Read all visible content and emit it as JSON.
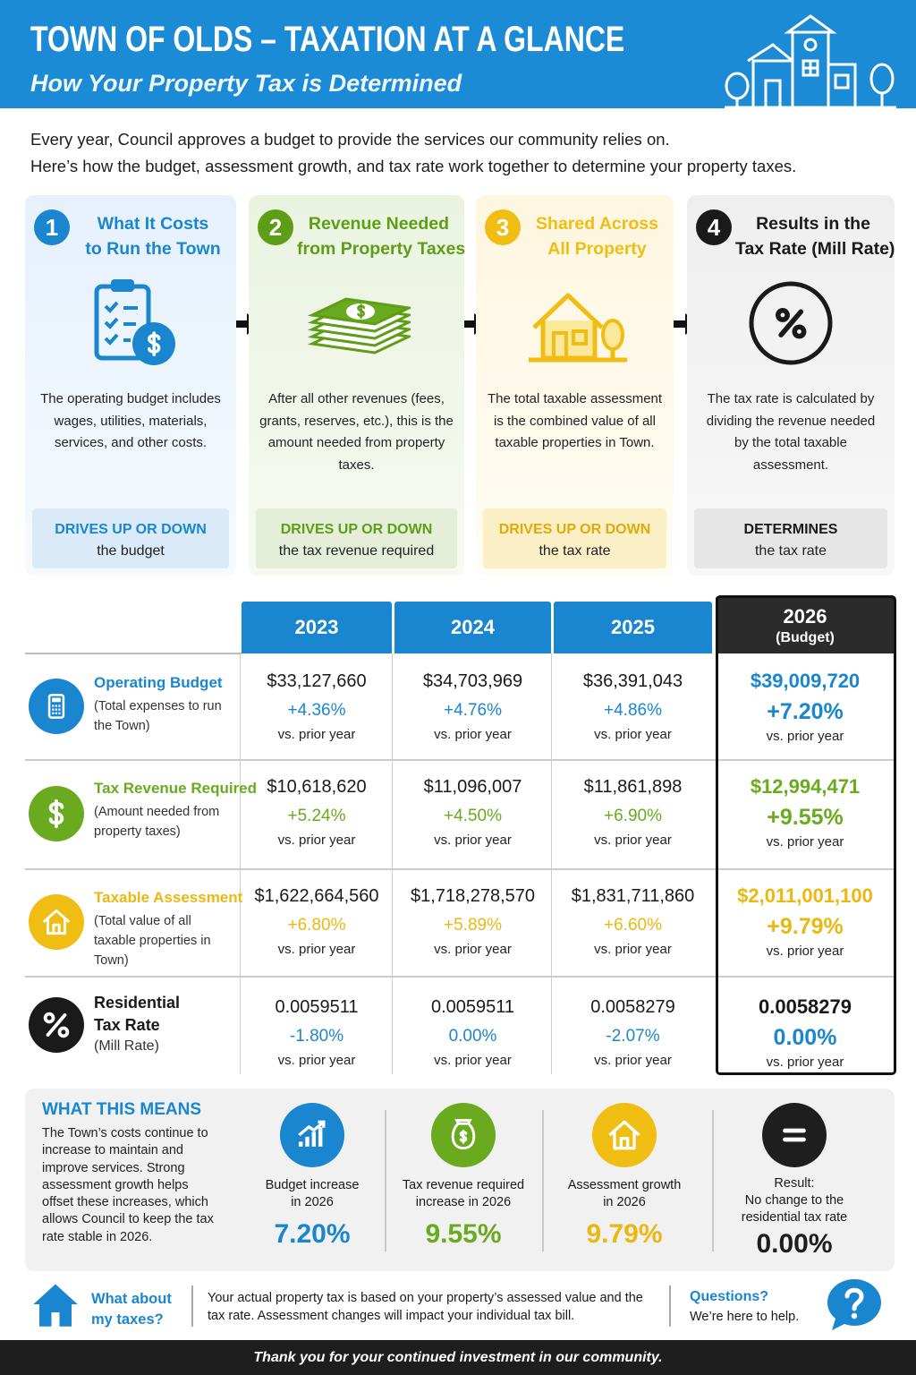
{
  "header": {
    "title": "TOWN OF OLDS – TAXATION AT A GLANCE",
    "subtitle": "How Your Property Tax is Determined"
  },
  "intro": [
    "Every year, Council approves a budget to provide the services our community relies on.",
    "Here’s how the budget, assessment growth, and tax rate work together to determine your property taxes."
  ],
  "steps": [
    {
      "number": "1",
      "title": [
        "What It Costs",
        "to Run the Town"
      ],
      "description": "The operating budget includes wages, utilities, materials, services, and other costs.",
      "effect": "DRIVES UP OR DOWN",
      "target": "the budget"
    },
    {
      "number": "2",
      "title": [
        "Revenue Needed",
        "from Property Taxes"
      ],
      "description": "After all other revenues (fees, grants, reserves, etc.), this is the amount needed from property taxes.",
      "effect": "DRIVES UP OR DOWN",
      "target": "the tax revenue required"
    },
    {
      "number": "3",
      "title": [
        "Shared Across",
        "All Property"
      ],
      "description": "The total taxable assessment is the combined value of all taxable properties in Town.",
      "effect": "DRIVES UP OR DOWN",
      "target": "the tax rate"
    },
    {
      "number": "4",
      "title": [
        "Results in the",
        "Tax Rate (Mill Rate)"
      ],
      "description": "The tax rate is calculated by dividing the revenue needed by the total taxable assessment.",
      "effect": "DETERMINES",
      "target": "the tax rate"
    }
  ],
  "table": {
    "columns": [
      {
        "year": "2023"
      },
      {
        "year": "2024"
      },
      {
        "year": "2025"
      },
      {
        "year": "2026",
        "note": "(Budget)"
      }
    ],
    "rows": [
      {
        "label": "Operating Budget",
        "note": "(Total expenses to run the Town)",
        "cells": [
          {
            "value": "$33,127,660",
            "change": "+4.36%",
            "basis": "vs. prior year"
          },
          {
            "value": "$34,703,969",
            "change": "+4.76%",
            "basis": "vs. prior year"
          },
          {
            "value": "$36,391,043",
            "change": "+4.86%",
            "basis": "vs. prior year"
          },
          {
            "value": "$39,009,720",
            "change": "+7.20%",
            "basis": "vs. prior year"
          }
        ]
      },
      {
        "label": "Tax Revenue Required",
        "note": "(Amount needed from property taxes)",
        "cells": [
          {
            "value": "$10,618,620",
            "change": "+5.24%",
            "basis": "vs. prior year"
          },
          {
            "value": "$11,096,007",
            "change": "+4.50%",
            "basis": "vs. prior year"
          },
          {
            "value": "$11,861,898",
            "change": "+6.90%",
            "basis": "vs. prior year"
          },
          {
            "value": "$12,994,471",
            "change": "+9.55%",
            "basis": "vs. prior year"
          }
        ]
      },
      {
        "label": "Taxable Assessment",
        "note": "(Total value of all taxable properties in Town)",
        "cells": [
          {
            "value": "$1,622,664,560",
            "change": "+6.80%",
            "basis": "vs. prior year"
          },
          {
            "value": "$1,718,278,570",
            "change": "+5.89%",
            "basis": "vs. prior year"
          },
          {
            "value": "$1,831,711,860",
            "change": "+6.60%",
            "basis": "vs. prior year"
          },
          {
            "value": "$2,011,001,100",
            "change": "+9.79%",
            "basis": "vs. prior year"
          }
        ]
      },
      {
        "label": "Residential Tax Rate",
        "note": "(Mill Rate)",
        "cells": [
          {
            "value": "0.0059511",
            "change": "-1.80%",
            "basis": "vs. prior year"
          },
          {
            "value": "0.0059511",
            "change": "0.00%",
            "basis": "vs. prior year"
          },
          {
            "value": "0.0058279",
            "change": "-2.07%",
            "basis": "vs. prior year"
          },
          {
            "value": "0.0058279",
            "change": "0.00%",
            "basis": "vs. prior year"
          }
        ]
      }
    ]
  },
  "summary": {
    "heading": "WHAT THIS MEANS",
    "text": "The Town’s costs continue to increase to maintain and improve services. Strong assessment growth helps offset these increases, which allows Council to keep the tax rate stable in 2026.",
    "items": [
      {
        "label": [
          "Budget increase",
          "in 2026"
        ],
        "value": "7.20%"
      },
      {
        "label": [
          "Tax revenue required",
          "increase in 2026"
        ],
        "value": "9.55%"
      },
      {
        "label": [
          "Assessment growth",
          "in 2026"
        ],
        "value": "9.79%"
      },
      {
        "label": [
          "Result:",
          "No change to the",
          "residential tax rate"
        ],
        "value": "0.00%"
      }
    ]
  },
  "info": {
    "question": "What about my taxes?",
    "text": "Your actual property tax is based on your property’s assessed value and the tax rate. Assessment changes will impact your individual tax bill.",
    "help_title": "Questions?",
    "help_text": "We’re here to help."
  },
  "footer": {
    "text": "Thank you for your continued investment in our community."
  }
}
